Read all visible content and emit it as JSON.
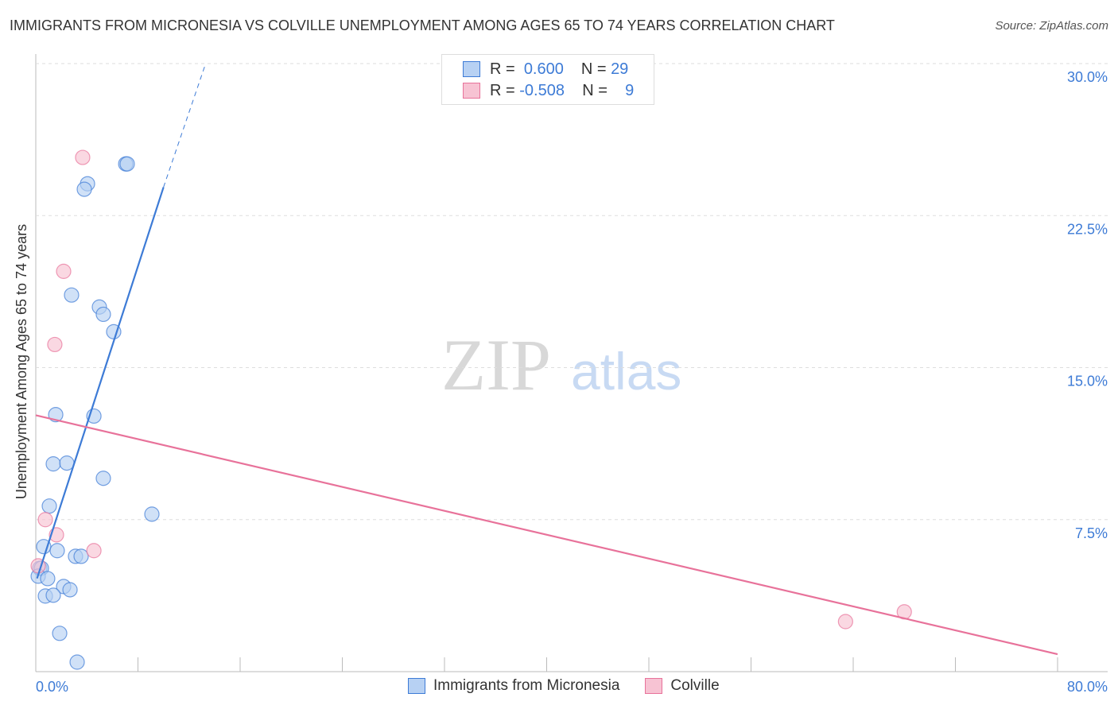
{
  "chart_data": {
    "type": "scatter",
    "title": "IMMIGRANTS FROM MICRONESIA VS COLVILLE UNEMPLOYMENT AMONG AGES 65 TO 74 YEARS CORRELATION CHART",
    "source": "Source: ZipAtlas.com",
    "ylabel": "Unemployment Among Ages 65 to 74 years",
    "xlim": [
      0,
      80
    ],
    "ylim": [
      0,
      30
    ],
    "x_tick_labels": [
      "0.0%",
      "80.0%"
    ],
    "y_ticks": [
      7.5,
      15,
      22.5,
      30
    ],
    "y_tick_labels": [
      "7.5%",
      "15.0%",
      "22.5%",
      "30.0%"
    ],
    "watermark": "ZIPatlas",
    "series": [
      {
        "name": "Immigrants from Micronesia",
        "color": "#3d7bd6",
        "fill": "#b7d1f3",
        "R": "0.600",
        "N": "29",
        "trend": {
          "x": [
            0.1,
            10.0
          ],
          "y": [
            4.6,
            23.9
          ],
          "dashed_to": [
            13.3,
            30
          ]
        },
        "points": [
          [
            7.04,
            25.05
          ],
          [
            7.16,
            25.05
          ],
          [
            4.05,
            24.07
          ],
          [
            3.8,
            23.8
          ],
          [
            2.8,
            18.58
          ],
          [
            4.98,
            17.99
          ],
          [
            5.29,
            17.63
          ],
          [
            6.1,
            16.77
          ],
          [
            1.56,
            12.68
          ],
          [
            4.55,
            12.61
          ],
          [
            1.37,
            10.25
          ],
          [
            2.43,
            10.29
          ],
          [
            5.29,
            9.54
          ],
          [
            1.06,
            8.17
          ],
          [
            9.09,
            7.77
          ],
          [
            0.62,
            6.17
          ],
          [
            1.68,
            5.97
          ],
          [
            3.11,
            5.69
          ],
          [
            3.55,
            5.69
          ],
          [
            0.31,
            5.1
          ],
          [
            0.44,
            5.1
          ],
          [
            0.19,
            4.71
          ],
          [
            0.93,
            4.59
          ],
          [
            2.18,
            4.2
          ],
          [
            2.68,
            4.04
          ],
          [
            0.75,
            3.73
          ],
          [
            1.37,
            3.77
          ],
          [
            1.87,
            1.89
          ],
          [
            3.24,
            0.47
          ]
        ]
      },
      {
        "name": "Colville",
        "color": "#e8729a",
        "fill": "#f7c3d3",
        "R": "-0.508",
        "N": "9",
        "trend": {
          "x": [
            0,
            80
          ],
          "y": [
            12.65,
            0.86
          ]
        },
        "points": [
          [
            3.67,
            25.37
          ],
          [
            2.18,
            19.75
          ],
          [
            1.49,
            16.14
          ],
          [
            0.75,
            7.5
          ],
          [
            1.62,
            6.75
          ],
          [
            4.55,
            5.97
          ],
          [
            0.19,
            5.22
          ],
          [
            63.4,
            2.47
          ],
          [
            68.0,
            2.95
          ]
        ]
      }
    ]
  },
  "legend": {
    "r_label": "R =",
    "n_label": "N ="
  }
}
